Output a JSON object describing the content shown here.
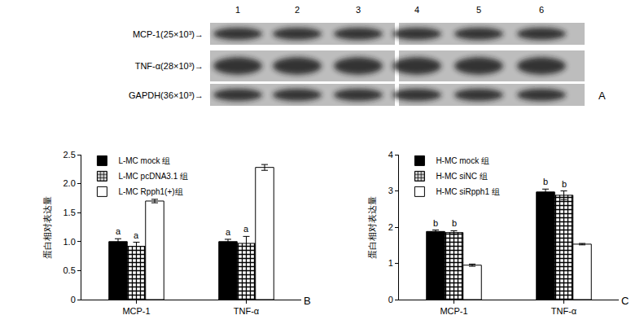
{
  "blot": {
    "label": "A",
    "lanes": [
      "1",
      "2",
      "3",
      "4",
      "5",
      "6"
    ],
    "rows": [
      "MCP-1(25×10³)→",
      "TNF-α(28×10³)→",
      "GAPDH(36×10³)→"
    ]
  },
  "chart_data": [
    {
      "type": "bar",
      "label": "B",
      "y_label": "蛋白相对表达量",
      "categories": [
        "MCP-1",
        "TNF-α"
      ],
      "series": [
        {
          "name": "L-MC mock 组",
          "color": "#000000",
          "marker": "solid",
          "values": [
            1.0,
            1.0
          ],
          "errors": [
            0.05,
            0.04
          ],
          "annotations": [
            "a",
            "a"
          ]
        },
        {
          "name": "L-MC pcDNA3.1 组",
          "color": "#000000",
          "marker": "checkered",
          "values": [
            0.92,
            0.97
          ],
          "errors": [
            0.07,
            0.12
          ],
          "annotations": [
            "a",
            "a"
          ]
        },
        {
          "name": "L-MC Rpph1(+)组",
          "color": "#ffffff",
          "marker": "hollow",
          "values": [
            1.7,
            2.28
          ],
          "errors": [
            0.03,
            0.05
          ],
          "annotations": [
            null,
            null
          ]
        }
      ],
      "ylim": [
        0,
        2.5
      ],
      "yticks": [
        0,
        0.5,
        {
          "value": 1,
          "label": "1.0"
        },
        1.5,
        {
          "value": 2,
          "label": "2.0"
        },
        2.5
      ],
      "legend": "upper left",
      "grid": false
    },
    {
      "type": "bar",
      "label": "C",
      "y_label": "蛋白相对表达量",
      "categories": [
        "MCP-1",
        "TNF-α"
      ],
      "series": [
        {
          "name": "H-MC mock 组",
          "color": "#000000",
          "marker": "solid",
          "values": [
            1.88,
            2.97
          ],
          "errors": [
            0.04,
            0.08
          ],
          "annotations": [
            "b",
            "b"
          ]
        },
        {
          "name": "H-MC siNC 组",
          "color": "#000000",
          "marker": "checkered",
          "values": [
            1.85,
            2.88
          ],
          "errors": [
            0.05,
            0.12
          ],
          "annotations": [
            "b",
            "b"
          ]
        },
        {
          "name": "H-MC siRpph1 组",
          "color": "#ffffff",
          "marker": "hollow",
          "values": [
            0.95,
            1.53
          ],
          "errors": [
            0.03,
            0.02
          ],
          "annotations": [
            null,
            null
          ]
        }
      ],
      "ylim": [
        0,
        4
      ],
      "yticks": [
        0,
        1,
        2,
        3,
        4
      ],
      "legend": "upper left",
      "grid": false
    }
  ]
}
